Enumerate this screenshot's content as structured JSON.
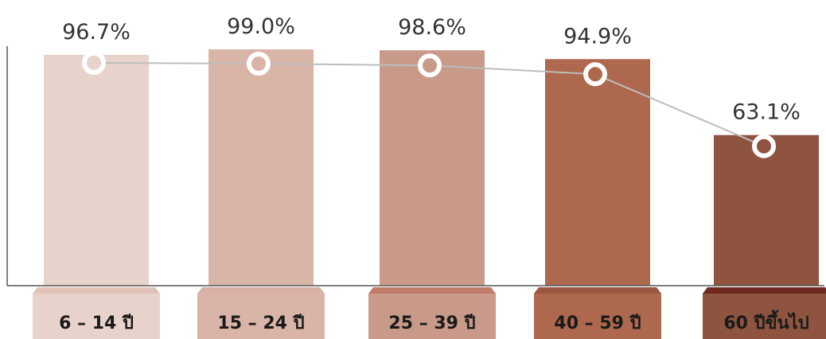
{
  "chart_data": {
    "type": "bar",
    "categories": [
      "6 – 14 ปี",
      "15 – 24 ปี",
      "25 – 39 ปี",
      "40 – 59 ปี",
      "60 ปีขึ้นไป"
    ],
    "values": [
      96.7,
      99.0,
      98.6,
      94.9,
      63.1
    ],
    "value_labels": [
      "96.7%",
      "99.0%",
      "98.6%",
      "94.9%",
      "63.1%"
    ],
    "overlay": "line",
    "title": "",
    "xlabel": "",
    "ylabel": "",
    "ylim": [
      0,
      100
    ],
    "grid": false,
    "colors": [
      "#E8D3CC",
      "#D9B5A8",
      "#C99A89",
      "#AE684E",
      "#8E5440"
    ],
    "base_colors": [
      "#E2C2B7",
      "#D8B1A4",
      "#C07C68",
      "#9A5640",
      "#6E2A20"
    ],
    "line_color": "#BDBDBD",
    "marker_fill": "#FFFFFF"
  }
}
